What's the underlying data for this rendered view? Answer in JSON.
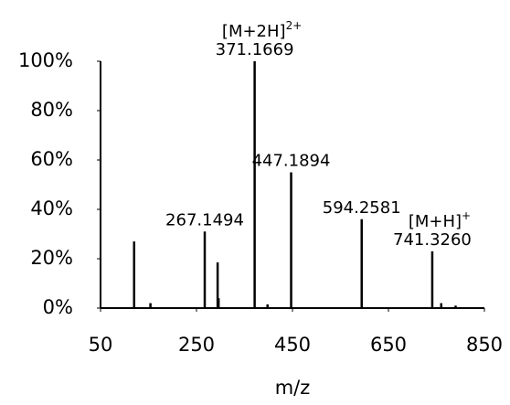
{
  "chart_data": {
    "type": "spectrum",
    "x_axis_label": "m/z",
    "x": [
      120,
      154,
      267.1494,
      294,
      296,
      371.1669,
      398,
      447.1894,
      594.2581,
      741.326,
      760,
      790
    ],
    "values": [
      27,
      2,
      31,
      18.5,
      4,
      100,
      1.5,
      55,
      36,
      23,
      2,
      1
    ],
    "peak_labels": [
      null,
      null,
      "267.1494",
      null,
      null,
      "371.1669",
      null,
      "447.1894",
      "594.2581",
      "741.3260",
      null,
      null
    ],
    "ion_labels": [
      null,
      null,
      null,
      null,
      null,
      {
        "text": "[M+2H]",
        "charge": "2+"
      },
      null,
      null,
      null,
      {
        "text": "[M+H]",
        "charge": "+"
      },
      null,
      null
    ],
    "color": "#000000",
    "xlim": [
      50,
      850
    ],
    "xticks": [
      50,
      250,
      450,
      650,
      850
    ],
    "ylim": [
      0,
      100
    ],
    "yticks": [
      {
        "value": 0,
        "label": "0%"
      },
      {
        "value": 20,
        "label": "20%"
      },
      {
        "value": 40,
        "label": "40%"
      },
      {
        "value": 60,
        "label": "60%"
      },
      {
        "value": 80,
        "label": "80%"
      },
      {
        "value": 100,
        "label": "100%"
      }
    ],
    "grid": false
  }
}
